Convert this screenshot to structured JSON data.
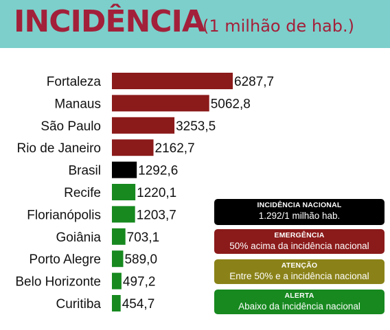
{
  "header": {
    "title": "INCIDÊNCIA",
    "subtitle": "(1 milhão de hab.)"
  },
  "legend": [
    {
      "title": "INCIDÊNCIA NACIONAL",
      "desc": "1.292/1 milhão hab.",
      "color": "#000000"
    },
    {
      "title": "EMERGÊNCIA",
      "desc": "50% acima da incidência nacional",
      "color": "#8b1a1a"
    },
    {
      "title": "ATENÇÃO",
      "desc": "Entre 50% e a incidência nacional",
      "color": "#8a8218"
    },
    {
      "title": "ALERTA",
      "desc": "Abaixo da incidência nacional",
      "color": "#17891f"
    }
  ],
  "chart_data": {
    "type": "bar",
    "orientation": "horizontal",
    "title": "",
    "categories": [
      "Fortaleza",
      "Manaus",
      "São Paulo",
      "Rio de Janeiro",
      "Brasil",
      "Recife",
      "Florianópolis",
      "Goiânia",
      "Porto Alegre",
      "Belo Horizonte",
      "Curitiba"
    ],
    "values": [
      6287.7,
      5062.8,
      3253.5,
      2162.7,
      1292.6,
      1220.1,
      1203.7,
      703.1,
      589.0,
      497.2,
      454.7
    ],
    "value_labels": [
      "6287,7",
      "5062,8",
      "3253,5",
      "2162,7",
      "1292,6",
      "1220,1",
      "1203,7",
      "703,1",
      "589,0",
      "497,2",
      "454,7"
    ],
    "colors": [
      "#8b1a1a",
      "#8b1a1a",
      "#8b1a1a",
      "#8b1a1a",
      "#000000",
      "#17891f",
      "#17891f",
      "#17891f",
      "#17891f",
      "#17891f",
      "#17891f"
    ],
    "grid": false,
    "legend_position": "bottom-right"
  }
}
